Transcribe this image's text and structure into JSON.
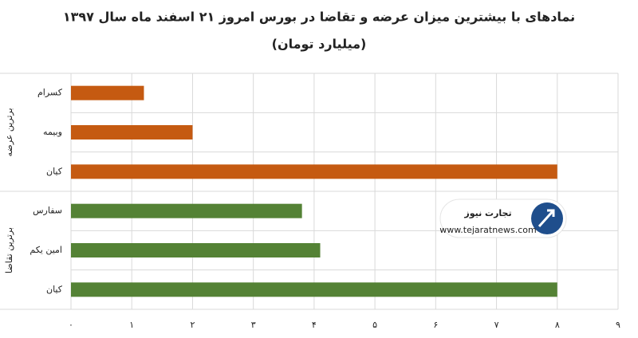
{
  "chart_data": {
    "type": "bar",
    "title": "نمادهای با بیشترین میزان عرضه و تقاضا در بورس امروز ۲۱ اسفند ماه سال ۱۳۹۷",
    "subtitle": "(میلیارد تومان)",
    "groups": [
      {
        "label": "برترین عرضه",
        "color": "#c55a11",
        "categories": [
          "کسرام",
          "وبیمه",
          "کیان"
        ],
        "values": [
          1.2,
          2.0,
          8.0
        ]
      },
      {
        "label": "برترین تقاضا",
        "color": "#548235",
        "categories": [
          "سفارس",
          "امین یکم",
          "کیان"
        ],
        "values": [
          3.8,
          4.1,
          8.0
        ]
      }
    ],
    "xlim": [
      0,
      9
    ],
    "xticks": [
      {
        "value": 0,
        "label": "۰"
      },
      {
        "value": 1,
        "label": "۱"
      },
      {
        "value": 2,
        "label": "۲"
      },
      {
        "value": 3,
        "label": "۳"
      },
      {
        "value": 4,
        "label": "۴"
      },
      {
        "value": 5,
        "label": "۵"
      },
      {
        "value": 6,
        "label": "۶"
      },
      {
        "value": 7,
        "label": "۷"
      },
      {
        "value": 8,
        "label": "۸"
      },
      {
        "value": 9,
        "label": "۹"
      }
    ],
    "grid": true,
    "watermark": {
      "name": "تجارت نیوز",
      "url": "www.tejaratnews.com"
    }
  }
}
